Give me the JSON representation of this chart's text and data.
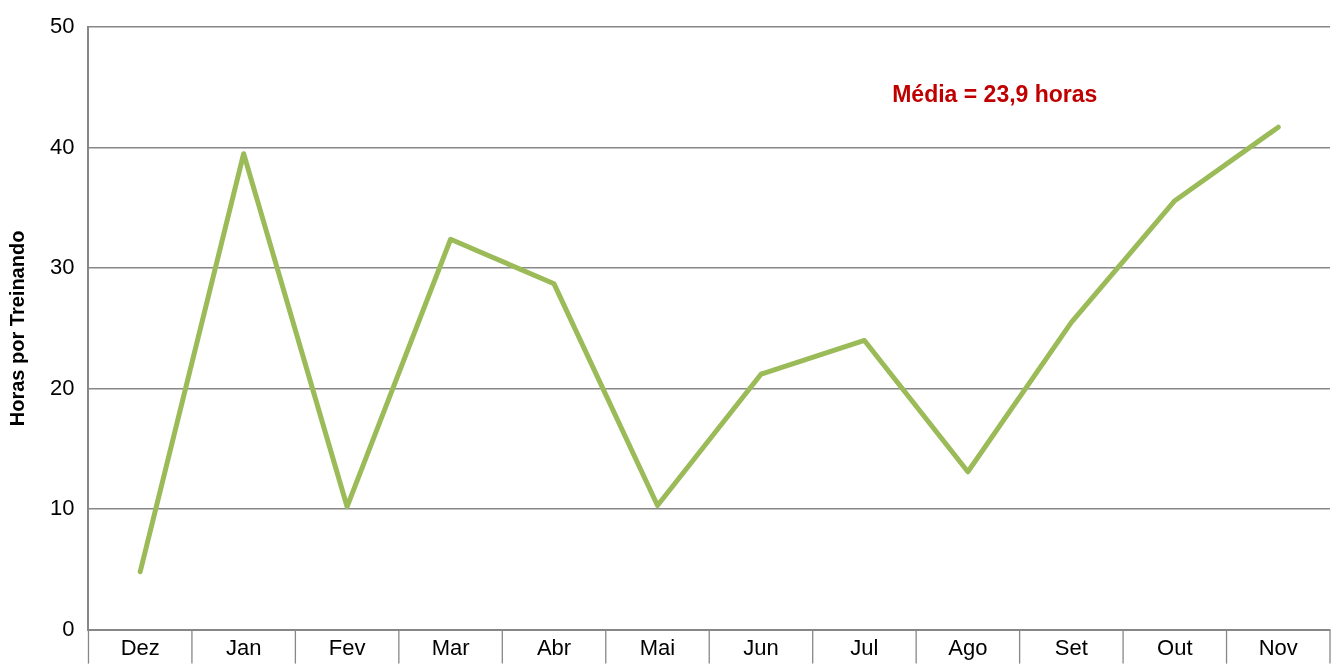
{
  "chart_data": {
    "type": "line",
    "ylabel": "Horas por Treinando",
    "categories": [
      "Dez",
      "Jan",
      "Fev",
      "Mar",
      "Abr",
      "Mai",
      "Jun",
      "Jul",
      "Ago",
      "Set",
      "Out",
      "Nov"
    ],
    "values": [
      4.8,
      39.5,
      10.2,
      32.4,
      28.7,
      10.3,
      21.2,
      24.0,
      13.1,
      25.5,
      35.6,
      41.7
    ],
    "color": "#9bbb59",
    "ylim": [
      0,
      50
    ],
    "yticks": [
      0,
      10,
      20,
      30,
      40,
      50
    ],
    "grid": "y",
    "legend": false,
    "marker": "none",
    "line_style": "solid",
    "annotations": [
      "Média = 23,9 horas"
    ]
  }
}
